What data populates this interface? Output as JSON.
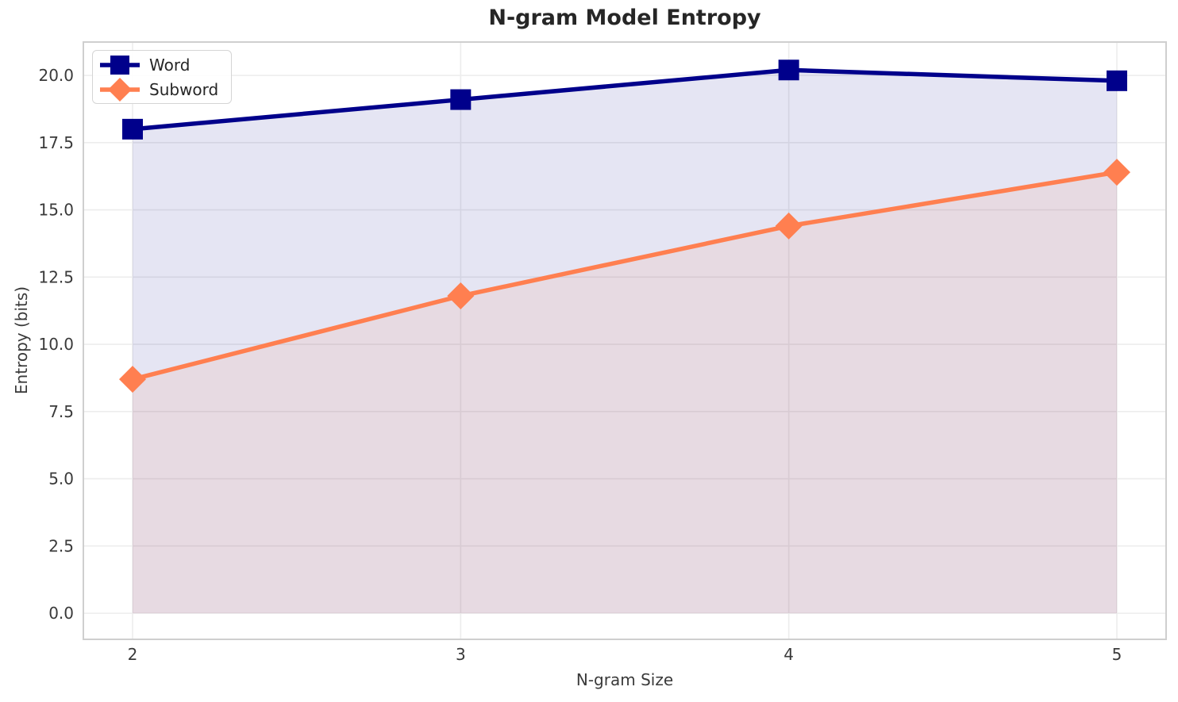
{
  "figure": {
    "background": "#ffffff"
  },
  "chart_data": {
    "type": "line",
    "title": "N-gram Model Entropy",
    "xlabel": "N-gram Size",
    "ylabel": "Entropy (bits)",
    "x": [
      2,
      3,
      4,
      5
    ],
    "series": [
      {
        "name": "Word",
        "values": [
          18.0,
          19.1,
          20.2,
          19.8
        ],
        "color": "#00008b",
        "marker": "square",
        "fill_alpha": 0.1
      },
      {
        "name": "Subword",
        "values": [
          8.7,
          11.8,
          14.4,
          16.4
        ],
        "color": "#ff7f50",
        "marker": "diamond",
        "fill_alpha": 0.1
      }
    ],
    "xticks": [
      2,
      3,
      4,
      5
    ],
    "yticks": [
      0.0,
      2.5,
      5.0,
      7.5,
      10.0,
      12.5,
      15.0,
      17.5,
      20.0
    ],
    "xlim": [
      1.85,
      5.15
    ],
    "ylim": [
      -0.97,
      21.24
    ],
    "grid": true,
    "fill_to_zero": true,
    "legend_position": "upper left",
    "colors": {
      "grid": "#ededed",
      "spine": "#cfcfcf",
      "tick_text": "#3a3a3a",
      "title_text": "#262626"
    }
  }
}
